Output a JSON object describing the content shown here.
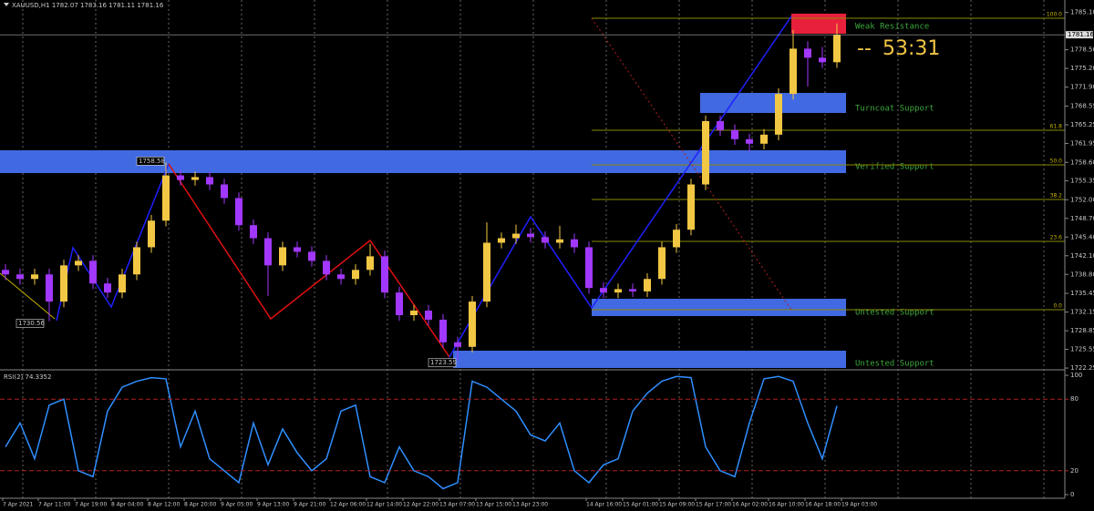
{
  "header": "XAUUSD,H1  1782.07 1783.16 1781.11 1781.16",
  "chart_data": {
    "type": "candlestick",
    "up_color": "#f2c744",
    "down_color": "#a238ff",
    "open": [
      1739.6,
      1738.8,
      1738.0,
      1738.8,
      1734.0,
      1740.4,
      1741.2,
      1737.2,
      1735.6,
      1738.8,
      1743.6,
      1748.3,
      1756.3,
      1755.5,
      1756.0,
      1754.7,
      1752.3,
      1747.5,
      1745.2,
      1740.4,
      1743.6,
      1742.8,
      1741.2,
      1738.8,
      1738.0,
      1739.6,
      1742.0,
      1735.6,
      1731.6,
      1732.4,
      1730.8,
      1726.8,
      1726.0,
      1734.0,
      1744.4,
      1745.2,
      1746.0,
      1745.4,
      1744.4,
      1745.0,
      1743.6,
      1736.4,
      1735.6,
      1736.2,
      1735.8,
      1738.0,
      1743.6,
      1746.7,
      1754.7,
      1765.9,
      1764.3,
      1762.7,
      1761.9,
      1763.5,
      1770.7,
      1778.7,
      1777.1,
      1776.3
    ],
    "high": [
      1740.6,
      1739.8,
      1739.8,
      1739.8,
      1741.4,
      1742.2,
      1742.2,
      1738.2,
      1739.8,
      1744.6,
      1749.3,
      1758.58,
      1757.3,
      1757.0,
      1757.0,
      1755.7,
      1753.3,
      1748.5,
      1746.2,
      1744.6,
      1744.6,
      1743.8,
      1742.2,
      1739.8,
      1740.6,
      1744.2,
      1743.0,
      1736.6,
      1733.4,
      1733.4,
      1731.8,
      1727.8,
      1735.0,
      1748.0,
      1746.2,
      1747.6,
      1747.0,
      1746.4,
      1747.4,
      1746.0,
      1744.6,
      1737.4,
      1737.2,
      1737.2,
      1739.0,
      1744.6,
      1747.7,
      1755.7,
      1766.9,
      1766.9,
      1765.3,
      1763.7,
      1764.5,
      1771.7,
      1782.0,
      1780.0,
      1779.0,
      1783.16
    ],
    "low": [
      1737.8,
      1737.0,
      1737.0,
      1730.56,
      1733.0,
      1739.4,
      1736.2,
      1734.6,
      1734.6,
      1737.8,
      1742.6,
      1747.3,
      1754.5,
      1754.5,
      1753.7,
      1751.3,
      1746.5,
      1744.2,
      1735.0,
      1739.4,
      1741.8,
      1740.2,
      1737.8,
      1737.0,
      1737.0,
      1738.6,
      1734.6,
      1730.6,
      1730.6,
      1729.8,
      1725.8,
      1723.59,
      1725.0,
      1733.0,
      1743.4,
      1744.2,
      1744.4,
      1743.4,
      1743.4,
      1742.6,
      1735.4,
      1734.6,
      1734.6,
      1734.8,
      1734.8,
      1737.0,
      1742.6,
      1745.7,
      1753.7,
      1763.3,
      1761.7,
      1760.5,
      1760.9,
      1762.5,
      1769.7,
      1772.0,
      1775.3,
      1775.3
    ],
    "close": [
      1738.8,
      1738.0,
      1738.8,
      1734.0,
      1740.4,
      1741.2,
      1737.2,
      1735.6,
      1738.8,
      1743.6,
      1748.3,
      1756.3,
      1755.5,
      1756.0,
      1754.7,
      1752.3,
      1747.5,
      1745.2,
      1740.4,
      1743.6,
      1742.8,
      1741.2,
      1738.8,
      1738.0,
      1739.6,
      1742.0,
      1735.6,
      1731.6,
      1732.4,
      1730.8,
      1726.8,
      1726.0,
      1734.0,
      1744.4,
      1745.2,
      1746.0,
      1745.4,
      1744.4,
      1745.0,
      1743.6,
      1736.4,
      1735.6,
      1736.2,
      1735.8,
      1738.0,
      1743.6,
      1746.7,
      1754.7,
      1765.9,
      1764.3,
      1762.7,
      1761.9,
      1763.5,
      1770.7,
      1778.7,
      1777.1,
      1776.3,
      1781.16
    ],
    "ylim": [
      1722.1,
      1787.3
    ],
    "yticks": [
      {
        "value": 1785.1,
        "label": "1785.10"
      },
      {
        "value": 1778.5,
        "label": "1778.50"
      },
      {
        "value": 1775.2,
        "label": "1775.20"
      },
      {
        "value": 1771.9,
        "label": "1771.90"
      },
      {
        "value": 1768.55,
        "label": "1768.55"
      },
      {
        "value": 1765.25,
        "label": "1765.25"
      },
      {
        "value": 1761.95,
        "label": "1761.95"
      },
      {
        "value": 1758.6,
        "label": "1758.60"
      },
      {
        "value": 1755.35,
        "label": "1755.35"
      },
      {
        "value": 1752.0,
        "label": "1752.00"
      },
      {
        "value": 1748.7,
        "label": "1748.70"
      },
      {
        "value": 1745.4,
        "label": "1745.40"
      },
      {
        "value": 1742.1,
        "label": "1742.10"
      },
      {
        "value": 1738.8,
        "label": "1738.80"
      },
      {
        "value": 1735.45,
        "label": "1735.45"
      },
      {
        "value": 1732.15,
        "label": "1732.15"
      },
      {
        "value": 1728.85,
        "label": "1728.85"
      },
      {
        "value": 1725.55,
        "label": "1725.55"
      },
      {
        "value": 1722.25,
        "label": "1722.25"
      }
    ],
    "current_price": 1781.16,
    "price_labels": [
      1758.58,
      1730.56,
      1723.59
    ],
    "x_labels": [
      "7 Apr 2021",
      "7 Apr 11:00",
      "7 Apr 19:00",
      "8 Apr 04:00",
      "8 Apr 12:00",
      "8 Apr 20:00",
      "9 Apr 05:00",
      "9 Apr 13:00",
      "9 Apr 21:00",
      "12 Apr 06:00",
      "12 Apr 14:00",
      "12 Apr 22:00",
      "13 Apr 07:00",
      "13 Apr 15:00",
      "13 Apr 23:00",
      "14 Apr 16:00",
      "15 Apr 01:00",
      "15 Apr 09:00",
      "15 Apr 17:00",
      "16 Apr 02:00",
      "16 Apr 10:00",
      "16 Apr 18:00",
      "19 Apr 03:00"
    ],
    "zones": [
      "Weak Resistance",
      "Turncoat Support",
      "Verified Support",
      "Untested Support",
      "Untested Support"
    ],
    "fib_levels": [
      "100.0",
      "61.8",
      "50.0",
      "38.2",
      "23.6",
      "0.0"
    ],
    "timer_prefix": "--",
    "timer": "53:31",
    "rsi": {
      "type": "line",
      "title": "RSI(2) 74.3352",
      "color": "#2f8fff",
      "values": [
        40,
        60,
        30,
        75,
        80,
        20,
        15,
        70,
        90,
        95,
        98,
        97,
        40,
        70,
        30,
        20,
        10,
        60,
        25,
        55,
        35,
        20,
        30,
        70,
        75,
        15,
        10,
        40,
        20,
        15,
        5,
        10,
        95,
        90,
        80,
        70,
        50,
        45,
        60,
        20,
        10,
        25,
        30,
        70,
        85,
        95,
        99,
        98,
        40,
        20,
        15,
        60,
        97,
        99,
        95,
        60,
        30,
        74.3352
      ],
      "ylim": [
        0,
        100
      ],
      "yticks": [
        0,
        20,
        80,
        100
      ]
    }
  }
}
